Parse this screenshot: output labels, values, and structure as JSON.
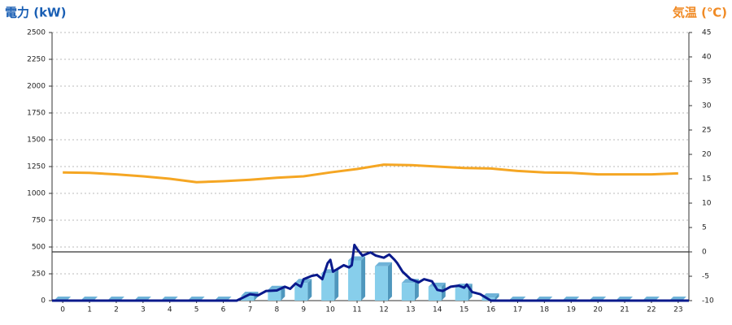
{
  "chart_data": {
    "type": "combo",
    "y_axis_label": "電力 (kW)",
    "y2_axis_label": "気温 (℃)",
    "xlim": [
      -0.4,
      23.4
    ],
    "xticks": [
      0,
      1,
      2,
      3,
      4,
      5,
      6,
      7,
      8,
      9,
      10,
      11,
      12,
      13,
      14,
      15,
      16,
      17,
      18,
      19,
      20,
      21,
      22,
      23
    ],
    "ylim": [
      0,
      2500
    ],
    "yticks": [
      0,
      250,
      500,
      750,
      1000,
      1250,
      1500,
      1750,
      2000,
      2250,
      2500
    ],
    "y2lim": [
      -10,
      45
    ],
    "y2ticks": [
      -10,
      -5,
      0,
      5,
      10,
      15,
      20,
      25,
      30,
      35,
      40,
      45
    ],
    "grid": true,
    "y2_zero_line": true,
    "series": [
      {
        "kind": "bar3d",
        "color": "#87ceeb",
        "x": [
          0,
          1,
          2,
          3,
          4,
          5,
          6,
          7,
          8,
          9,
          10,
          11,
          12,
          13,
          14,
          15,
          16,
          17,
          18,
          19,
          20,
          21,
          22,
          23
        ],
        "values": [
          0,
          0,
          0,
          0,
          0,
          0,
          0,
          45,
          100,
          165,
          255,
          375,
          320,
          165,
          130,
          120,
          30,
          0,
          0,
          0,
          0,
          0,
          0,
          0
        ]
      },
      {
        "kind": "line",
        "color": "#0a1a8c",
        "x": [
          -0.4,
          6.5,
          7,
          7.3,
          7.6,
          8,
          8.3,
          8.5,
          8.7,
          8.9,
          9,
          9.3,
          9.5,
          9.7,
          9.9,
          10,
          10.1,
          10.5,
          10.7,
          10.8,
          10.9,
          11,
          11.2,
          11.5,
          11.7,
          12,
          12.2,
          12.4,
          12.5,
          12.7,
          13,
          13.3,
          13.5,
          13.8,
          14,
          14.2,
          14.5,
          14.8,
          15,
          15.1,
          15.3,
          15.6,
          16,
          23.4
        ],
        "values": [
          0,
          0,
          60,
          50,
          90,
          95,
          130,
          110,
          160,
          130,
          200,
          230,
          240,
          200,
          350,
          380,
          270,
          330,
          310,
          330,
          520,
          480,
          420,
          450,
          420,
          400,
          430,
          380,
          350,
          270,
          200,
          170,
          200,
          180,
          100,
          90,
          130,
          140,
          120,
          150,
          80,
          60,
          0,
          0
        ]
      },
      {
        "kind": "line",
        "axis": "y2",
        "color": "#f5a623",
        "x": [
          0,
          1,
          2,
          3,
          4,
          5,
          6,
          7,
          8,
          9,
          10,
          11,
          12,
          13,
          14,
          15,
          16,
          17,
          18,
          19,
          20,
          21,
          22,
          23
        ],
        "values": [
          16.3,
          16.2,
          15.9,
          15.5,
          15,
          14.3,
          14.5,
          14.8,
          15.2,
          15.5,
          16.3,
          17,
          17.9,
          17.8,
          17.5,
          17.2,
          17.1,
          16.6,
          16.3,
          16.2,
          15.9,
          15.9,
          15.9,
          16.1
        ]
      }
    ]
  }
}
